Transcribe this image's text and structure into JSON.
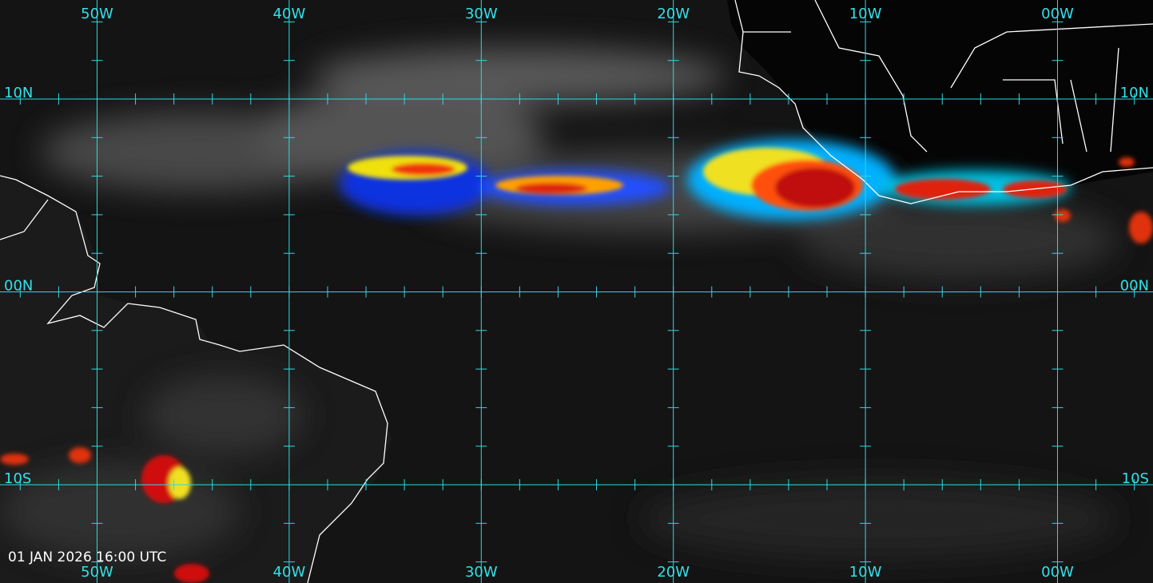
{
  "map": {
    "longitude_labels": [
      "50W",
      "40W",
      "30W",
      "20W",
      "10W",
      "00W"
    ],
    "latitude_labels": [
      "10N",
      "00N",
      "10S"
    ],
    "timestamp": "01 JAN 2026 16:00 UTC"
  }
}
